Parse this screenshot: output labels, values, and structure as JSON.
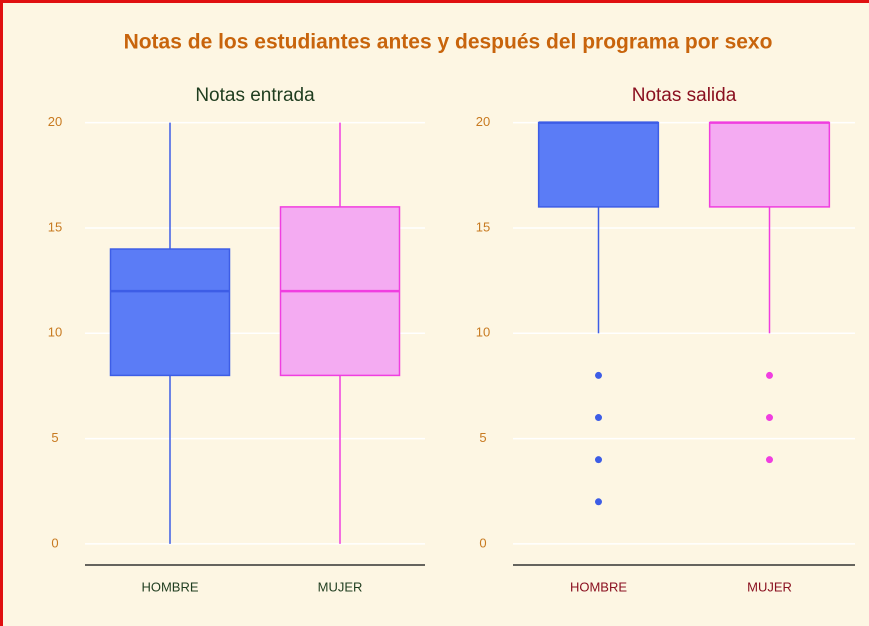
{
  "title": "Notas de los estudiantes antes y después del programa por sexo",
  "chart_data": [
    {
      "type": "box",
      "title": "Notas entrada",
      "title_color": "#1f3d1f",
      "categories": [
        "HOMBRE",
        "MUJER"
      ],
      "category_color": "#1f3d1f",
      "ylim": [
        -1,
        20.6
      ],
      "yticks": [
        0,
        5,
        10,
        15,
        20
      ],
      "grid": true,
      "boxes": [
        {
          "min": 0,
          "q1": 8,
          "median": 12,
          "q3": 14,
          "max": 20,
          "outliers": [],
          "fill": "#5b7cf6",
          "color": "#3d5de6"
        },
        {
          "min": 0,
          "q1": 8,
          "median": 12,
          "q3": 16,
          "max": 20,
          "outliers": [],
          "fill": "#f4abf2",
          "color": "#f03ee0"
        }
      ]
    },
    {
      "type": "box",
      "title": "Notas salida",
      "title_color": "#8a1020",
      "categories": [
        "HOMBRE",
        "MUJER"
      ],
      "category_color": "#8a1020",
      "ylim": [
        -1,
        20.6
      ],
      "yticks": [
        0,
        5,
        10,
        15,
        20
      ],
      "grid": true,
      "boxes": [
        {
          "min": 10,
          "q1": 16,
          "median": 20,
          "q3": 20,
          "max": 20,
          "outliers": [
            2,
            4,
            6,
            8
          ],
          "fill": "#5b7cf6",
          "color": "#3d5de6"
        },
        {
          "min": 10,
          "q1": 16,
          "median": 20,
          "q3": 20,
          "max": 20,
          "outliers": [
            4,
            6,
            8
          ],
          "fill": "#f4abf2",
          "color": "#f03ee0"
        }
      ]
    }
  ]
}
